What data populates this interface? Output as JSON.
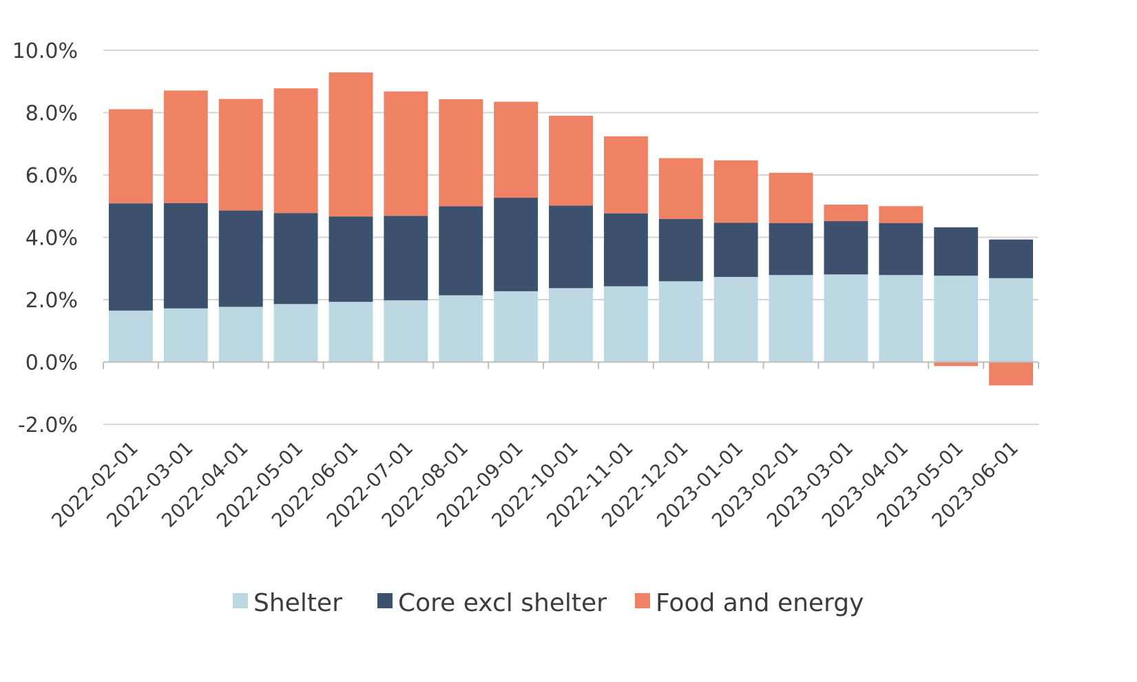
{
  "chart_data": {
    "type": "bar",
    "stacked": true,
    "title": "",
    "xlabel": "",
    "ylabel": "",
    "ylim": [
      -2.0,
      10.0
    ],
    "yticks": [
      -2.0,
      0.0,
      2.0,
      4.0,
      6.0,
      8.0,
      10.0
    ],
    "ytick_labels": [
      "-2.0%",
      "0.0%",
      "2.0%",
      "4.0%",
      "6.0%",
      "8.0%",
      "10.0%"
    ],
    "grid": true,
    "legend_position": "bottom",
    "categories": [
      "2022-02-01",
      "2022-03-01",
      "2022-04-01",
      "2022-05-01",
      "2022-06-01",
      "2022-07-01",
      "2022-08-01",
      "2022-09-01",
      "2022-10-01",
      "2022-11-01",
      "2022-12-01",
      "2023-01-01",
      "2023-02-01",
      "2023-03-01",
      "2023-04-01",
      "2023-05-01",
      "2023-06-01"
    ],
    "series": [
      {
        "name": "Shelter",
        "color": "#bcd8e2",
        "values": [
          1.65,
          1.72,
          1.77,
          1.86,
          1.93,
          1.98,
          2.14,
          2.27,
          2.37,
          2.43,
          2.59,
          2.73,
          2.79,
          2.81,
          2.79,
          2.77,
          2.69
        ]
      },
      {
        "name": "Core excl shelter",
        "color": "#3d516e",
        "values": [
          3.44,
          3.38,
          3.09,
          2.92,
          2.74,
          2.71,
          2.86,
          3.0,
          2.65,
          2.34,
          2.0,
          1.74,
          1.67,
          1.71,
          1.67,
          1.55,
          1.24
        ]
      },
      {
        "name": "Food and energy",
        "color": "#ef8264",
        "values": [
          3.02,
          3.61,
          3.58,
          4.0,
          4.62,
          3.99,
          3.43,
          3.08,
          2.88,
          2.47,
          1.95,
          2.0,
          1.61,
          0.53,
          0.54,
          -0.13,
          -0.75
        ]
      }
    ]
  }
}
